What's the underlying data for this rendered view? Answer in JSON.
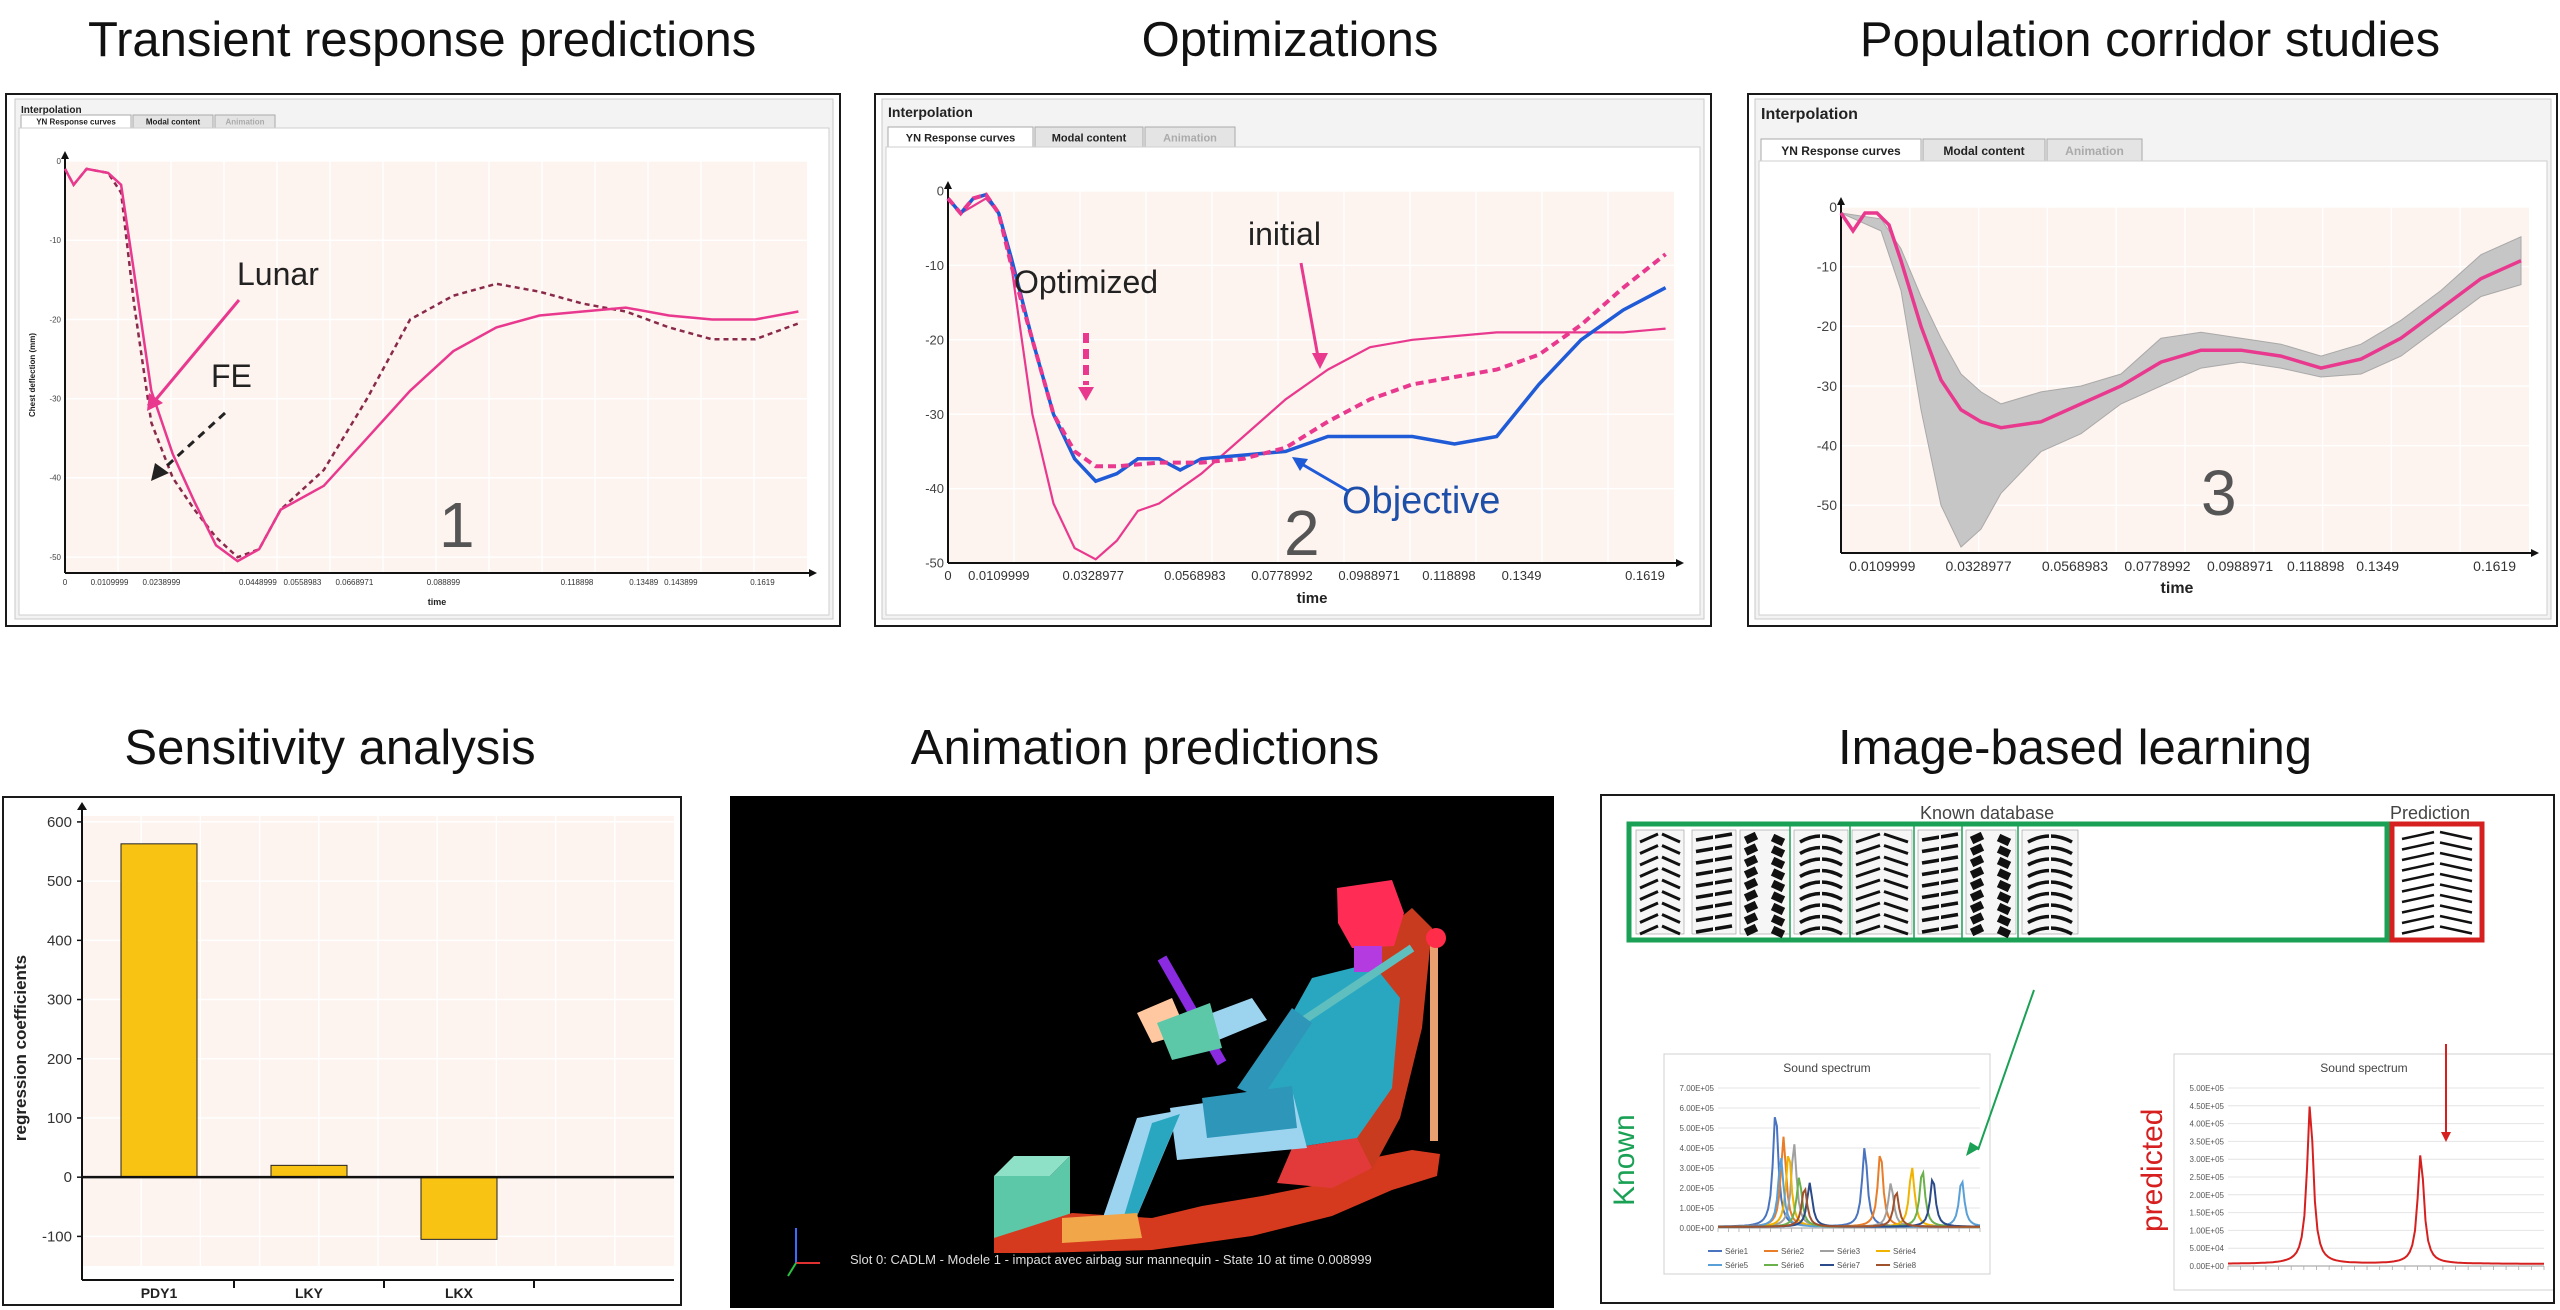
{
  "titles": {
    "transient": "Transient response predictions",
    "optimizations": "Optimizations",
    "population": "Population corridor studies",
    "sensitivity": "Sensitivity analysis",
    "animation": "Animation predictions",
    "image_learning": "Image-based learning"
  },
  "interp_panel": {
    "label": "Interpolation",
    "tabs": [
      "YN Response curves",
      "Modal content",
      "Animation"
    ]
  },
  "panel1": {
    "annotations": {
      "lunar": "Lunar",
      "fe": "FE",
      "number": "1"
    },
    "xlabel": "time",
    "ylabel": "Chest deflection (mm)"
  },
  "panel2": {
    "annotations": {
      "initial": "initial",
      "optimized": "Optimized",
      "objective": "Objective",
      "number": "2"
    },
    "xlabel": "time"
  },
  "panel3": {
    "annotations": {
      "number": "3"
    },
    "xlabel": "time"
  },
  "animation_panel": {
    "status": "Slot 0: CADLM - Modele 1 - impact avec airbag sur mannequin - State 10 at time 0.008999"
  },
  "image_panel": {
    "known_db": "Known database",
    "prediction": "Prediction",
    "known_side": "Known",
    "predicted_side": "predicted",
    "spectrum_title": "Sound spectrum",
    "legend_known": [
      "Série1",
      "Série2",
      "Série3",
      "Série4",
      "Série5",
      "Série6",
      "Série7",
      "Série8"
    ],
    "left_yticks": [
      "7.00E+05",
      "6.00E+05",
      "5.00E+05",
      "4.00E+05",
      "3.00E+05",
      "2.00E+05",
      "1.00E+05",
      "0.00E+00"
    ],
    "right_yticks": [
      "5.00E+05",
      "4.50E+05",
      "4.00E+05",
      "3.50E+05",
      "3.00E+05",
      "2.50E+05",
      "2.00E+05",
      "1.50E+05",
      "1.00E+05",
      "5.00E+04",
      "0.00E+00"
    ]
  },
  "colors": {
    "pink": "#e8398f",
    "blue": "#1f5bd6",
    "objective_text": "#1e4fa8",
    "bar": "#f9c313",
    "green": "#1aa155",
    "red": "#d62020",
    "plot_bg": "#fdf3ef"
  },
  "chart_data": [
    {
      "id": "transient",
      "type": "line",
      "xlabel": "time",
      "ylabel": "Chest deflection (mm)",
      "xticks": [
        "0",
        "0.0109999",
        "0.0238999",
        "0.0448999",
        "0.0558983",
        "0.0668971",
        "0.088899",
        "0.118898",
        "0.13489",
        "0.143899",
        "0.1619"
      ],
      "yticks": [
        "0",
        "-10",
        "-20",
        "-30",
        "-40",
        "-50"
      ],
      "xlim": [
        0,
        0.172
      ],
      "ylim": [
        -52,
        0
      ],
      "series": [
        {
          "name": "Lunar",
          "x": [
            0,
            0.002,
            0.005,
            0.01,
            0.013,
            0.016,
            0.02,
            0.025,
            0.03,
            0.035,
            0.04,
            0.045,
            0.05,
            0.06,
            0.07,
            0.08,
            0.09,
            0.1,
            0.11,
            0.12,
            0.13,
            0.14,
            0.15,
            0.16,
            0.17
          ],
          "y": [
            -1,
            -3,
            -1,
            -1.5,
            -3,
            -14,
            -29,
            -37,
            -43,
            -48.5,
            -50.5,
            -49,
            -44,
            -41,
            -35,
            -29,
            -24,
            -21,
            -19.5,
            -19,
            -18.5,
            -19.5,
            -20,
            -20,
            -19
          ]
        },
        {
          "name": "FE",
          "x": [
            0,
            0.002,
            0.005,
            0.01,
            0.013,
            0.016,
            0.02,
            0.025,
            0.03,
            0.035,
            0.04,
            0.045,
            0.05,
            0.06,
            0.07,
            0.08,
            0.09,
            0.1,
            0.11,
            0.12,
            0.13,
            0.14,
            0.15,
            0.16,
            0.17
          ],
          "y": [
            -1,
            -3,
            -1,
            -1.5,
            -4,
            -18,
            -33,
            -40,
            -44,
            -47.5,
            -50,
            -49,
            -44,
            -39,
            -30,
            -20,
            -17,
            -15.5,
            -16.5,
            -18,
            -19,
            -21,
            -22.5,
            -22.5,
            -20.5
          ]
        }
      ]
    },
    {
      "id": "optimizations",
      "type": "line",
      "xlabel": "time",
      "xticks": [
        "0",
        "0.0109999",
        "0.0328977",
        "0.0568983",
        "0.0778992",
        "0.0988971",
        "0.118898",
        "0.1349",
        "0.1619"
      ],
      "yticks": [
        "0",
        "-10",
        "-20",
        "-30",
        "-40",
        "-50"
      ],
      "xlim": [
        0,
        0.172
      ],
      "ylim": [
        -50,
        0
      ],
      "series": [
        {
          "name": "initial",
          "x": [
            0,
            0.003,
            0.006,
            0.009,
            0.012,
            0.015,
            0.02,
            0.025,
            0.03,
            0.035,
            0.04,
            0.045,
            0.05,
            0.06,
            0.07,
            0.08,
            0.09,
            0.1,
            0.11,
            0.12,
            0.13,
            0.14,
            0.15,
            0.16,
            0.17
          ],
          "y": [
            -1,
            -3,
            -2,
            -1,
            -3,
            -10,
            -30,
            -42,
            -48,
            -49.5,
            -47,
            -43,
            -42,
            -38,
            -33,
            -28,
            -24,
            -21,
            -20,
            -19.5,
            -19,
            -19,
            -19,
            -19,
            -18.5
          ]
        },
        {
          "name": "Optimized",
          "x": [
            0,
            0.003,
            0.006,
            0.009,
            0.012,
            0.015,
            0.02,
            0.025,
            0.03,
            0.035,
            0.04,
            0.05,
            0.06,
            0.07,
            0.08,
            0.09,
            0.1,
            0.11,
            0.12,
            0.13,
            0.14,
            0.15,
            0.16,
            0.17
          ],
          "y": [
            -1,
            -3,
            -1,
            -0.5,
            -3,
            -10,
            -20,
            -30,
            -35,
            -37,
            -37,
            -36.5,
            -36.5,
            -36,
            -34.5,
            -31,
            -28,
            -26,
            -25,
            -24,
            -22,
            -18,
            -13,
            -8.5
          ]
        },
        {
          "name": "Objective",
          "x": [
            0,
            0.003,
            0.006,
            0.009,
            0.012,
            0.015,
            0.02,
            0.025,
            0.03,
            0.035,
            0.04,
            0.045,
            0.05,
            0.055,
            0.06,
            0.07,
            0.08,
            0.09,
            0.1,
            0.11,
            0.12,
            0.13,
            0.14,
            0.15,
            0.16,
            0.17
          ],
          "y": [
            -1,
            -3,
            -1,
            -0.5,
            -3,
            -9,
            -20,
            -30,
            -36,
            -39,
            -38,
            -36,
            -36,
            -37.5,
            -36,
            -35.5,
            -35,
            -33,
            -33,
            -33,
            -34,
            -33,
            -26,
            -20,
            -16,
            -13
          ]
        }
      ]
    },
    {
      "id": "population",
      "type": "line",
      "xlabel": "time",
      "xticks": [
        "0.0109999",
        "0.0328977",
        "0.0568983",
        "0.0778992",
        "0.0988971",
        "0.118898",
        "0.1349",
        "0.1619"
      ],
      "yticks": [
        "0",
        "-10",
        "-20",
        "-30",
        "-40",
        "-50"
      ],
      "xlim": [
        0,
        0.172
      ],
      "ylim": [
        -58,
        0
      ],
      "series": [
        {
          "name": "mean",
          "x": [
            0,
            0.003,
            0.006,
            0.009,
            0.012,
            0.015,
            0.02,
            0.025,
            0.03,
            0.035,
            0.04,
            0.05,
            0.06,
            0.07,
            0.08,
            0.09,
            0.1,
            0.11,
            0.12,
            0.13,
            0.14,
            0.15,
            0.16,
            0.17
          ],
          "y": [
            -1,
            -4,
            -1,
            -1,
            -3,
            -9,
            -20,
            -29,
            -34,
            -36,
            -37,
            -36,
            -33,
            -30,
            -26,
            -24,
            -24,
            -25,
            -27,
            -25.5,
            -22,
            -17,
            -12,
            -9
          ]
        },
        {
          "name": "upper",
          "x": [
            0,
            0.01,
            0.015,
            0.02,
            0.025,
            0.03,
            0.035,
            0.04,
            0.05,
            0.06,
            0.07,
            0.08,
            0.09,
            0.1,
            0.11,
            0.12,
            0.13,
            0.14,
            0.15,
            0.16,
            0.17
          ],
          "y": [
            -1,
            -2,
            -7,
            -15,
            -22,
            -28,
            -31,
            -33,
            -31,
            -30,
            -28,
            -22,
            -21,
            -22,
            -23,
            -25,
            -23,
            -19,
            -14,
            -8,
            -5
          ]
        },
        {
          "name": "lower",
          "x": [
            0,
            0.01,
            0.015,
            0.02,
            0.025,
            0.03,
            0.035,
            0.04,
            0.05,
            0.06,
            0.07,
            0.08,
            0.09,
            0.1,
            0.11,
            0.12,
            0.13,
            0.14,
            0.15,
            0.16,
            0.17
          ],
          "y": [
            -1,
            -4,
            -14,
            -34,
            -50,
            -57,
            -54,
            -48,
            -41,
            -38,
            -33,
            -30,
            -27,
            -26,
            -27,
            -28.5,
            -28,
            -25,
            -20,
            -15,
            -13
          ]
        }
      ]
    },
    {
      "id": "sensitivity",
      "type": "bar",
      "categories": [
        "PDY1",
        "LKY",
        "LKX"
      ],
      "values": [
        563,
        20,
        -105
      ],
      "ylabel": "regression coefficients",
      "yticks": [
        "600",
        "500",
        "400",
        "300",
        "200",
        "100",
        "0",
        "-100"
      ],
      "ylim": [
        -150,
        610
      ]
    },
    {
      "id": "known_spectrum",
      "type": "line",
      "title": "Sound spectrum",
      "ylim": [
        0,
        700000
      ],
      "series": [
        {
          "name": "Série1",
          "peaks": [
            [
              0.22,
              590000
            ],
            [
              0.56,
              400000
            ]
          ]
        },
        {
          "name": "Série2",
          "peaks": [
            [
              0.25,
              450000
            ],
            [
              0.62,
              380000
            ]
          ]
        },
        {
          "name": "Série3",
          "peaks": [
            [
              0.29,
              420000
            ],
            [
              0.66,
              220000
            ]
          ]
        },
        {
          "name": "Série4",
          "peaks": [
            [
              0.27,
              380000
            ],
            [
              0.74,
              300000
            ]
          ]
        },
        {
          "name": "Série5",
          "peaks": [
            [
              0.24,
              350000
            ],
            [
              0.93,
              240000
            ]
          ]
        },
        {
          "name": "Série6",
          "peaks": [
            [
              0.31,
              250000
            ],
            [
              0.78,
              290000
            ]
          ]
        },
        {
          "name": "Série7",
          "peaks": [
            [
              0.35,
              220000
            ],
            [
              0.82,
              250000
            ]
          ]
        },
        {
          "name": "Série8",
          "peaks": [
            [
              0.33,
              200000
            ],
            [
              0.68,
              180000
            ]
          ]
        }
      ]
    },
    {
      "id": "predicted_spectrum",
      "type": "line",
      "title": "Sound spectrum",
      "ylim": [
        0,
        500000
      ],
      "series": [
        {
          "name": "predicted",
          "peaks": [
            [
              0.26,
              450000
            ],
            [
              0.61,
              310000
            ]
          ]
        }
      ]
    }
  ]
}
